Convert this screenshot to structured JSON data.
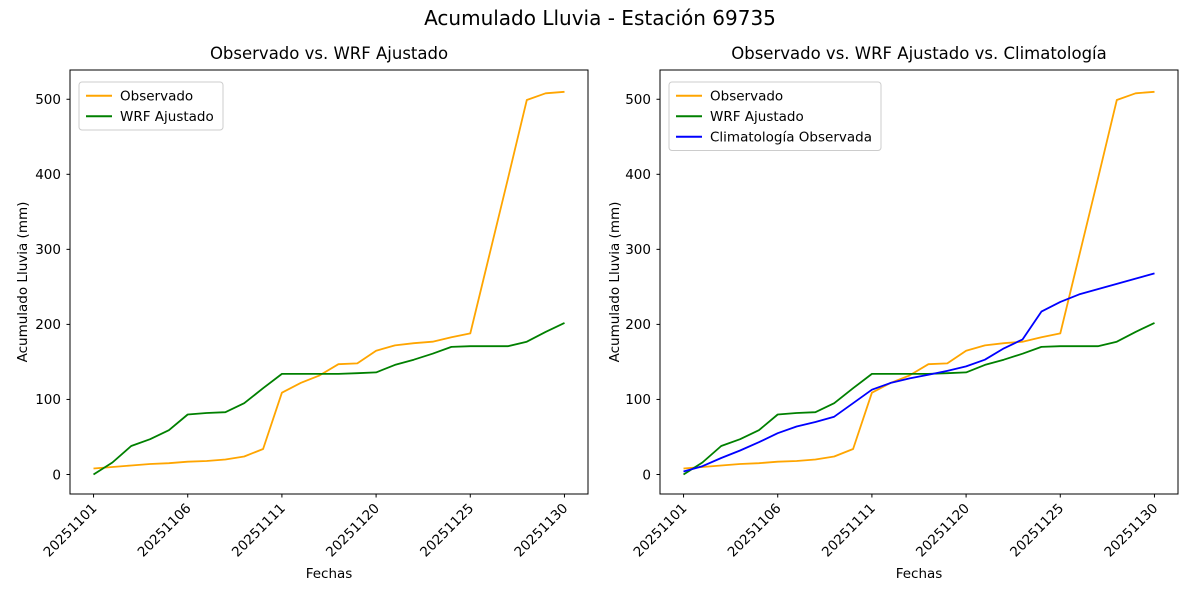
{
  "figure": {
    "title": "Acumulado Lluvia - Estación 69735",
    "background_color": "#FFFFFF",
    "text_color": "#000000"
  },
  "chart_data": [
    {
      "type": "line",
      "title": "Observado vs. WRF Ajustado",
      "xlabel": "Fechas",
      "ylabel": "Acumulado Lluvia (mm)",
      "x_tick_indices": [
        0,
        5,
        10,
        15,
        20,
        25
      ],
      "x_tick_labels": [
        "20251101",
        "20251106",
        "20251111",
        "20251120",
        "20251125",
        "20251130"
      ],
      "x_tick_rotation": 45,
      "y_ticks": [
        0,
        100,
        200,
        300,
        400,
        500
      ],
      "xlim": [
        -1.25,
        26.25
      ],
      "ylim": [
        -26,
        539
      ],
      "grid": false,
      "legend_position": "upper left",
      "n_points": 26,
      "series": [
        {
          "name": "Observado",
          "color": "#FFA500",
          "values": [
            8,
            10,
            12,
            14,
            15,
            17,
            18,
            20,
            24,
            34,
            109,
            122,
            132,
            147,
            148,
            165,
            172,
            175,
            177,
            183,
            188,
            291,
            394,
            499,
            508,
            510
          ]
        },
        {
          "name": "WRF Ajustado",
          "color": "#008000",
          "values": [
            0,
            16,
            38,
            47,
            59,
            80,
            82,
            83,
            95,
            115,
            134,
            134,
            134,
            134,
            135,
            136,
            146,
            153,
            161,
            170,
            171,
            171,
            171,
            177,
            190,
            202
          ]
        }
      ]
    },
    {
      "type": "line",
      "title": "Observado vs. WRF Ajustado vs. Climatología",
      "xlabel": "Fechas",
      "ylabel": "Acumulado Lluvia (mm)",
      "x_tick_indices": [
        0,
        5,
        10,
        15,
        20,
        25
      ],
      "x_tick_labels": [
        "20251101",
        "20251106",
        "20251111",
        "20251120",
        "20251125",
        "20251130"
      ],
      "x_tick_rotation": 45,
      "y_ticks": [
        0,
        100,
        200,
        300,
        400,
        500
      ],
      "xlim": [
        -1.25,
        26.25
      ],
      "ylim": [
        -26,
        539
      ],
      "grid": false,
      "legend_position": "upper left",
      "n_points": 26,
      "series": [
        {
          "name": "Observado",
          "color": "#FFA500",
          "values": [
            8,
            10,
            12,
            14,
            15,
            17,
            18,
            20,
            24,
            34,
            109,
            122,
            132,
            147,
            148,
            165,
            172,
            175,
            177,
            183,
            188,
            291,
            394,
            499,
            508,
            510
          ]
        },
        {
          "name": "WRF Ajustado",
          "color": "#008000",
          "values": [
            0,
            16,
            38,
            47,
            59,
            80,
            82,
            83,
            95,
            115,
            134,
            134,
            134,
            134,
            135,
            136,
            146,
            153,
            161,
            170,
            171,
            171,
            171,
            177,
            190,
            202
          ]
        },
        {
          "name": "Climatología Observada",
          "color": "#0000FF",
          "values": [
            4,
            11,
            22,
            32,
            43,
            55,
            64,
            70,
            77,
            95,
            113,
            122,
            128,
            133,
            138,
            144,
            153,
            168,
            180,
            217,
            230,
            240,
            247,
            254,
            261,
            268
          ]
        }
      ]
    }
  ],
  "style": {
    "spine_color": "#000000",
    "legend_border_color": "#CCCCCC",
    "legend_background": "#FFFFFF"
  }
}
